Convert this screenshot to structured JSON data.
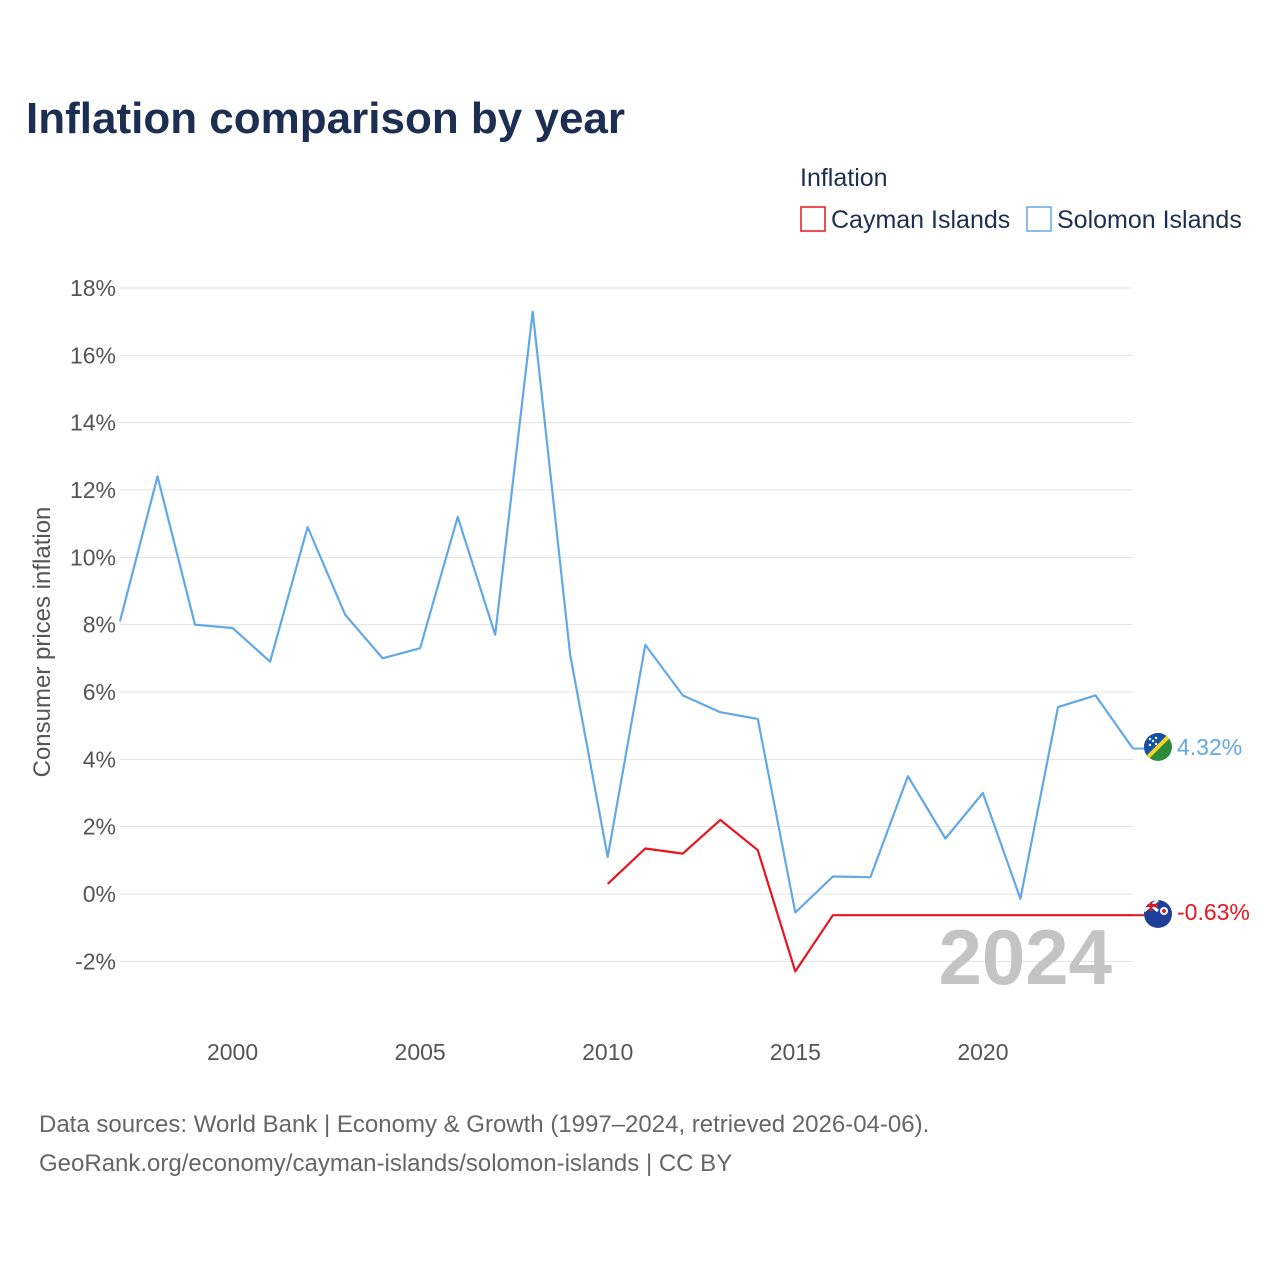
{
  "title": "Inflation comparison by year",
  "legend": {
    "title": "Inflation",
    "items": [
      {
        "name": "Cayman Islands",
        "color": "#e8141e"
      },
      {
        "name": "Solomon Islands",
        "color": "#62a8e6"
      }
    ]
  },
  "watermark_year": "2024",
  "source": {
    "line1": "Data sources: World Bank | Economy & Growth (1997–2024, retrieved 2026-04-06).",
    "line2": "GeoRank.org/economy/cayman-islands/solomon-islands | CC BY"
  },
  "chart_data": {
    "type": "line",
    "title": "Inflation comparison by year",
    "xlabel": "",
    "ylabel": "Consumer prices inflation",
    "xlim": [
      1997,
      2024
    ],
    "ylim": [
      -4,
      18
    ],
    "x_ticks": [
      2000,
      2005,
      2010,
      2015,
      2020
    ],
    "x_tick_labels": [
      "2000",
      "2005",
      "2010",
      "2015",
      "2020"
    ],
    "y_ticks": [
      -2,
      0,
      2,
      4,
      6,
      8,
      10,
      12,
      14,
      16,
      18
    ],
    "y_tick_labels": [
      "-2%",
      "0%",
      "2%",
      "4%",
      "6%",
      "8%",
      "10%",
      "12%",
      "14%",
      "16%",
      "18%"
    ],
    "grid": true,
    "legend_position": "top-right",
    "series": [
      {
        "name": "Solomon Islands",
        "color": "#62a8e6",
        "end_label": "4.32%",
        "x": [
          1997,
          1998,
          1999,
          2000,
          2001,
          2002,
          2003,
          2004,
          2005,
          2006,
          2007,
          2008,
          2009,
          2010,
          2011,
          2012,
          2013,
          2014,
          2015,
          2016,
          2017,
          2018,
          2019,
          2020,
          2021,
          2022,
          2023,
          2024
        ],
        "values": [
          8.1,
          12.4,
          8.0,
          7.9,
          6.9,
          10.9,
          8.3,
          7.0,
          7.3,
          11.2,
          7.7,
          17.3,
          7.1,
          1.1,
          7.4,
          5.9,
          5.4,
          5.2,
          -0.55,
          0.52,
          0.5,
          3.5,
          1.65,
          3.0,
          -0.14,
          5.55,
          5.9,
          4.32
        ]
      },
      {
        "name": "Cayman Islands",
        "color": "#e8141e",
        "end_label": "-0.63%",
        "x": [
          2010,
          2011,
          2012,
          2013,
          2014,
          2015,
          2016,
          2017,
          2018,
          2019,
          2020,
          2021,
          2022,
          2023,
          2024
        ],
        "values": [
          0.3,
          1.35,
          1.2,
          2.2,
          1.3,
          -2.3,
          -0.63,
          -0.63,
          -0.63,
          -0.63,
          -0.63,
          -0.63,
          -0.63,
          -0.63,
          -0.63
        ]
      }
    ]
  }
}
